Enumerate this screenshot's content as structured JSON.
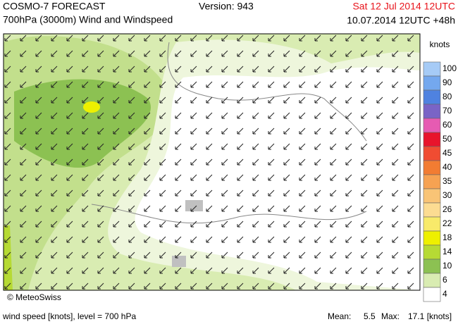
{
  "header": {
    "title": "COSMO-7 FORECAST",
    "subtitle": "700hPa (3000m) Wind and Windspeed",
    "version": "Version: 943",
    "valid": "Sat 12 Jul 2014 12UTC",
    "run": "10.07.2014 12UTC +48h"
  },
  "legend": {
    "unit": "knots",
    "levels": [
      {
        "label": 100,
        "color": "#a6cbf6"
      },
      {
        "label": 90,
        "color": "#74a8ee"
      },
      {
        "label": 80,
        "color": "#4f82e0"
      },
      {
        "label": 70,
        "color": "#7a64c6"
      },
      {
        "label": 60,
        "color": "#e65bb2"
      },
      {
        "label": 50,
        "color": "#e8142c"
      },
      {
        "label": 45,
        "color": "#f04c32"
      },
      {
        "label": 40,
        "color": "#f27c32"
      },
      {
        "label": 35,
        "color": "#f6a252"
      },
      {
        "label": 30,
        "color": "#f9c476"
      },
      {
        "label": 26,
        "color": "#fcdc92"
      },
      {
        "label": 22,
        "color": "#f8ea6a"
      },
      {
        "label": 18,
        "color": "#eef000"
      },
      {
        "label": 14,
        "color": "#b6da34"
      },
      {
        "label": 10,
        "color": "#8cc152"
      },
      {
        "label": 6,
        "color": "#d9ecb2"
      },
      {
        "label": 4,
        "color": "#ffffff"
      }
    ]
  },
  "map": {
    "credit": "© MeteoSwiss"
  },
  "footer": {
    "caption": "wind speed [knots], level = 700 hPa",
    "mean_label": "Mean:",
    "mean": "5.5",
    "max_label": "Max:",
    "max": "17.1 [knots]"
  }
}
